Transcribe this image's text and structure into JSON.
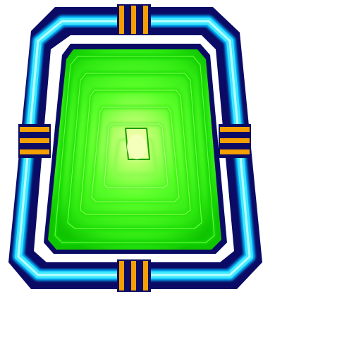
{
  "sprite": {
    "name": "portal-frame-tile",
    "colors": {
      "background": "#ffffff",
      "frame_outer": "#0b0b66",
      "frame_glow_edge": "#00c8ff",
      "frame_glow_core": "#a8ffff",
      "inner_gap": "#ffffff",
      "panel_border": "#0b0b66",
      "panel_green_dark": "#10d400",
      "panel_green_mid": "#3dff1a",
      "panel_green_light": "#8dff55",
      "panel_center": "#f0ffb0",
      "clamp": "#f5a000",
      "clamp_gap": "#0b0b66"
    },
    "clamps": [
      "clamp-top",
      "clamp-bottom",
      "clamp-left",
      "clamp-right"
    ]
  }
}
